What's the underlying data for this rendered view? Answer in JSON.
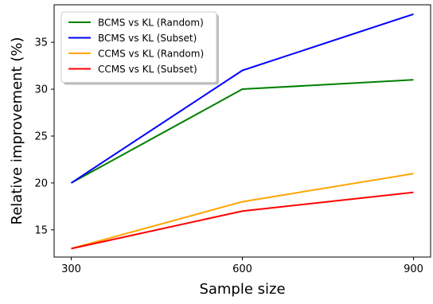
{
  "chart_data": {
    "type": "line",
    "title": "",
    "xlabel": "Sample size",
    "ylabel": "Relative improvement (%)",
    "x": [
      300,
      600,
      900
    ],
    "xticks": [
      300,
      600,
      900
    ],
    "yticks": [
      15,
      20,
      25,
      30,
      35
    ],
    "xlim": [
      270,
      930
    ],
    "ylim": [
      12.1,
      39.0
    ],
    "grid": false,
    "legend_position": "top-left",
    "series": [
      {
        "name": "BCMS vs KL (Random)",
        "color": "#008000",
        "values": [
          20,
          30,
          31
        ]
      },
      {
        "name": "BCMS vs KL (Subset)",
        "color": "#0000ff",
        "values": [
          20,
          32,
          38
        ]
      },
      {
        "name": "CCMS vs KL (Random)",
        "color": "#ffa500",
        "values": [
          13,
          18,
          21
        ]
      },
      {
        "name": "CCMS vs KL (Subset)",
        "color": "#ff0000",
        "values": [
          13,
          17,
          19
        ]
      }
    ]
  }
}
